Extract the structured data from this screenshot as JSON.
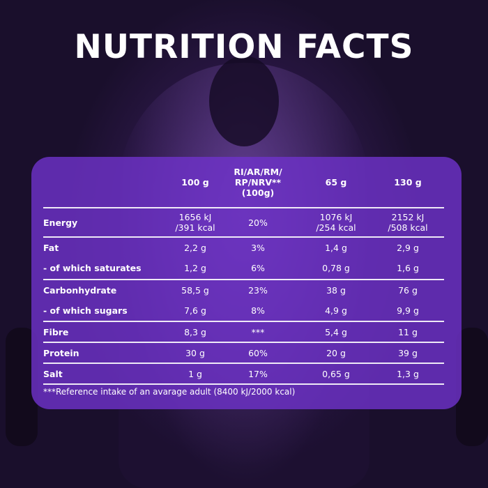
{
  "title": "NUTRITION FACTS",
  "colors": {
    "panel": "#6e32c8",
    "background": "#2c1848"
  },
  "table": {
    "headers": [
      "",
      "100 g",
      "RI/AR/RM/\nRP/NRV**\n(100g)",
      "65 g",
      "130 g"
    ],
    "rows": [
      {
        "label": "Energy",
        "values": [
          "1656 kJ\n/391 kcal",
          "20%",
          "1076 kJ\n/254 kcal",
          "2152 kJ\n/508 kcal"
        ]
      },
      {
        "label": "Fat",
        "values": [
          "2,2 g",
          "3%",
          "1,4 g",
          "2,9 g"
        ]
      },
      {
        "label": "- of which saturates",
        "values": [
          "1,2 g",
          "6%",
          "0,78 g",
          "1,6 g"
        ]
      },
      {
        "label": "Carbonhydrate",
        "values": [
          "58,5 g",
          "23%",
          "38 g",
          "76 g"
        ]
      },
      {
        "label": "- of which sugars",
        "values": [
          "7,6 g",
          "8%",
          "4,9 g",
          "9,9 g"
        ]
      },
      {
        "label": "Fibre",
        "values": [
          "8,3 g",
          "***",
          "5,4 g",
          "11 g"
        ]
      },
      {
        "label": "Protein",
        "values": [
          "30 g",
          "60%",
          "20 g",
          "39 g"
        ]
      },
      {
        "label": "Salt",
        "values": [
          "1 g",
          "17%",
          "0,65 g",
          "1,3 g"
        ]
      }
    ]
  },
  "footnote": "***Reference intake of an avarage adult (8400 kJ/2000 kcal)"
}
